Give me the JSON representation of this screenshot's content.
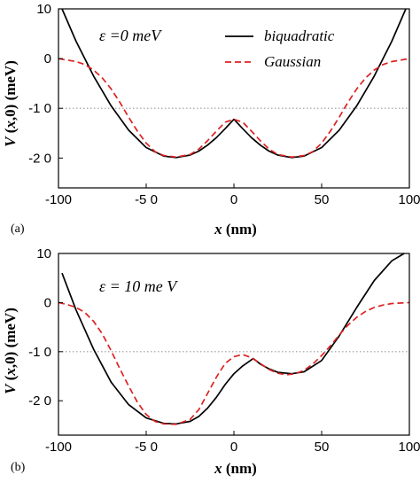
{
  "chart_data": [
    {
      "type": "line",
      "panel_label": "(a)",
      "annotation": "ε =0 meV",
      "xlabel": "x (nm)",
      "ylabel": "V (x,0) (meV)",
      "xlim": [
        -100,
        100
      ],
      "ylim": [
        -26,
        10
      ],
      "xticks": [
        -100,
        -50,
        0,
        50,
        100
      ],
      "xtick_labels": [
        "-100",
        "-5 0",
        "0",
        "50",
        "100"
      ],
      "yticks": [
        10,
        0,
        -10,
        -20
      ],
      "ytick_labels": [
        "10",
        "0",
        "-1 0",
        "-2 0"
      ],
      "reference_line": -10,
      "grid": false,
      "legend": "top-right",
      "series": [
        {
          "name": "biquadratic",
          "color": "#000000",
          "style": "solid",
          "x": [
            -98,
            -90,
            -80,
            -70,
            -60,
            -50,
            -40,
            -33,
            -25,
            -20,
            -15,
            -10,
            -5,
            0,
            5,
            10,
            15,
            20,
            25,
            33,
            40,
            50,
            60,
            70,
            80,
            90,
            98
          ],
          "y": [
            10,
            3.5,
            -3.5,
            -9.5,
            -14.4,
            -17.9,
            -19.6,
            -19.9,
            -19.4,
            -18.6,
            -17.4,
            -15.9,
            -14.1,
            -12.2,
            -14.1,
            -15.9,
            -17.4,
            -18.6,
            -19.4,
            -19.9,
            -19.6,
            -17.9,
            -14.4,
            -9.5,
            -3.5,
            3.5,
            10
          ]
        },
        {
          "name": "Gaussian",
          "color": "#dd2222",
          "style": "dashed",
          "x": [
            -100,
            -90,
            -85,
            -80,
            -75,
            -70,
            -65,
            -60,
            -55,
            -50,
            -45,
            -40,
            -33,
            -25,
            -20,
            -15,
            -10,
            -5,
            0,
            5,
            10,
            15,
            20,
            25,
            33,
            40,
            45,
            50,
            55,
            60,
            65,
            70,
            75,
            80,
            85,
            90,
            100
          ],
          "y": [
            0,
            -0.6,
            -1.2,
            -2.3,
            -3.9,
            -6.1,
            -8.8,
            -11.8,
            -14.6,
            -17.0,
            -18.7,
            -19.5,
            -19.8,
            -19.3,
            -18.2,
            -16.5,
            -14.6,
            -12.8,
            -12.2,
            -12.8,
            -14.6,
            -16.5,
            -18.2,
            -19.3,
            -19.8,
            -19.5,
            -18.7,
            -17.0,
            -14.6,
            -11.8,
            -8.8,
            -6.1,
            -3.9,
            -2.3,
            -1.2,
            -0.6,
            0
          ]
        }
      ]
    },
    {
      "type": "line",
      "panel_label": "(b)",
      "annotation": "ε = 10 me V",
      "xlabel": "x (nm)",
      "ylabel": "V (x,0) (meV)",
      "xlim": [
        -100,
        100
      ],
      "ylim": [
        -27,
        10
      ],
      "xticks": [
        -100,
        -50,
        0,
        50,
        100
      ],
      "xtick_labels": [
        "-100",
        "-5 0",
        "0",
        "50",
        "100"
      ],
      "yticks": [
        10,
        0,
        -10,
        -20
      ],
      "ytick_labels": [
        "10",
        "0",
        "-1 0",
        "-2 0"
      ],
      "reference_line": -10,
      "grid": false,
      "series": [
        {
          "name": "biquadratic",
          "color": "#000000",
          "style": "solid",
          "x": [
            -98,
            -90,
            -80,
            -70,
            -60,
            -50,
            -40,
            -33,
            -25,
            -20,
            -15,
            -10,
            -5,
            0,
            5,
            11,
            15,
            20,
            25,
            33,
            40,
            50,
            60,
            70,
            80,
            90,
            97
          ],
          "y": [
            6,
            -1.5,
            -9.5,
            -16.2,
            -20.8,
            -23.5,
            -24.6,
            -24.7,
            -24.2,
            -23.2,
            -21.5,
            -19.3,
            -16.7,
            -14.5,
            -12.9,
            -11.4,
            -12.5,
            -13.5,
            -14.2,
            -14.5,
            -14.1,
            -11.8,
            -6.8,
            -1.0,
            4.5,
            8.5,
            10
          ]
        },
        {
          "name": "Gaussian",
          "color": "#dd2222",
          "style": "dashed",
          "x": [
            -100,
            -95,
            -90,
            -85,
            -80,
            -75,
            -70,
            -65,
            -60,
            -55,
            -50,
            -45,
            -40,
            -33,
            -25,
            -20,
            -15,
            -10,
            -5,
            0,
            5,
            10,
            15,
            20,
            25,
            30,
            35,
            40,
            45,
            50,
            55,
            60,
            65,
            70,
            75,
            80,
            85,
            90,
            100
          ],
          "y": [
            0,
            -0.4,
            -1.0,
            -2.0,
            -3.8,
            -6.4,
            -9.8,
            -13.5,
            -17.0,
            -20.3,
            -22.8,
            -24.2,
            -24.7,
            -24.8,
            -23.8,
            -21.8,
            -18.5,
            -15.2,
            -12.4,
            -11.0,
            -10.6,
            -11.2,
            -12.4,
            -13.6,
            -14.4,
            -14.7,
            -14.5,
            -13.8,
            -12.5,
            -10.8,
            -8.8,
            -6.6,
            -4.6,
            -3.0,
            -1.8,
            -1.0,
            -0.5,
            -0.2,
            0
          ]
        }
      ]
    }
  ]
}
